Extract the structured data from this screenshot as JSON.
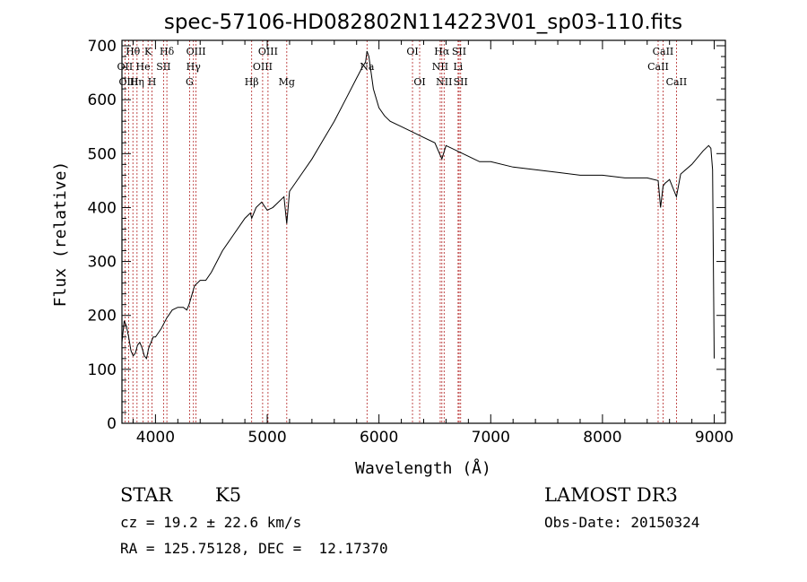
{
  "chart_data": {
    "type": "line",
    "title": "spec-57106-HD082802N114223V01_sp03-110.fits",
    "xlabel": "Wavelength (Å)",
    "ylabel": "Flux (relative)",
    "xlim": [
      3700,
      9100
    ],
    "ylim": [
      0,
      710
    ],
    "xticks": [
      4000,
      5000,
      6000,
      7000,
      8000,
      9000
    ],
    "yticks": [
      0,
      100,
      200,
      300,
      400,
      500,
      600,
      700
    ],
    "series": [
      {
        "name": "Flux",
        "x": [
          3700,
          3720,
          3740,
          3760,
          3780,
          3800,
          3820,
          3840,
          3860,
          3880,
          3900,
          3920,
          3940,
          3960,
          3980,
          4000,
          4050,
          4100,
          4150,
          4200,
          4250,
          4280,
          4300,
          4350,
          4400,
          4450,
          4500,
          4600,
          4700,
          4800,
          4850,
          4861,
          4900,
          4950,
          5000,
          5050,
          5100,
          5150,
          5175,
          5200,
          5300,
          5400,
          5500,
          5600,
          5700,
          5800,
          5850,
          5880,
          5893,
          5910,
          5930,
          5950,
          6000,
          6050,
          6100,
          6200,
          6300,
          6400,
          6500,
          6563,
          6600,
          6700,
          6800,
          6900,
          7000,
          7200,
          7400,
          7600,
          7800,
          8000,
          8200,
          8400,
          8498,
          8520,
          8542,
          8560,
          8600,
          8662,
          8700,
          8800,
          8900,
          8950,
          8970,
          8985,
          9000
        ],
        "y": [
          150,
          190,
          180,
          160,
          135,
          125,
          130,
          145,
          150,
          140,
          125,
          120,
          140,
          150,
          160,
          160,
          175,
          195,
          210,
          215,
          215,
          210,
          220,
          255,
          265,
          265,
          280,
          320,
          350,
          380,
          390,
          380,
          400,
          410,
          395,
          400,
          410,
          420,
          370,
          430,
          460,
          490,
          525,
          560,
          600,
          640,
          660,
          670,
          690,
          680,
          650,
          620,
          585,
          570,
          560,
          550,
          540,
          530,
          520,
          490,
          515,
          505,
          495,
          485,
          485,
          475,
          470,
          465,
          460,
          460,
          455,
          455,
          450,
          400,
          440,
          445,
          452,
          420,
          462,
          480,
          505,
          515,
          510,
          470,
          120
        ]
      }
    ],
    "lines": [
      {
        "name": "Hθ",
        "x": 3798,
        "row": 0
      },
      {
        "name": "OII",
        "x": 3727,
        "row": 1
      },
      {
        "name": "OIII",
        "x": 3760,
        "row": 2
      },
      {
        "name": "Hη",
        "x": 3835,
        "row": 2
      },
      {
        "name": "He",
        "x": 3889,
        "row": 1
      },
      {
        "name": "K",
        "x": 3934,
        "row": 0
      },
      {
        "name": "H",
        "x": 3969,
        "row": 2
      },
      {
        "name": "SII",
        "x": 4072,
        "row": 1
      },
      {
        "name": "Hδ",
        "x": 4102,
        "row": 0
      },
      {
        "name": "OIII",
        "x": 4363,
        "row": 0
      },
      {
        "name": "Hγ",
        "x": 4340,
        "row": 1
      },
      {
        "name": "G",
        "x": 4305,
        "row": 2
      },
      {
        "name": "Hβ",
        "x": 4861,
        "row": 2
      },
      {
        "name": "OIII",
        "x": 5007,
        "row": 0
      },
      {
        "name": "OIII",
        "x": 4959,
        "row": 1
      },
      {
        "name": "Mg",
        "x": 5175,
        "row": 2
      },
      {
        "name": "Na",
        "x": 5893,
        "row": 1
      },
      {
        "name": "OI",
        "x": 6300,
        "row": 0
      },
      {
        "name": "OI",
        "x": 6364,
        "row": 2
      },
      {
        "name": "Hα",
        "x": 6563,
        "row": 0
      },
      {
        "name": "NII",
        "x": 6548,
        "row": 1
      },
      {
        "name": "NII",
        "x": 6583,
        "row": 2
      },
      {
        "name": "SII",
        "x": 6717,
        "row": 0
      },
      {
        "name": "Li",
        "x": 6708,
        "row": 1
      },
      {
        "name": "SII",
        "x": 6731,
        "row": 2
      },
      {
        "name": "CaII",
        "x": 8542,
        "row": 0
      },
      {
        "name": "CaII",
        "x": 8498,
        "row": 1
      },
      {
        "name": "CaII",
        "x": 8662,
        "row": 2
      }
    ]
  },
  "info": {
    "object_class": "STAR",
    "subclass": "K5",
    "survey": "LAMOST DR3",
    "cz": "cz = 19.2 ± 22.6 km/s",
    "obs_date": "Obs-Date: 20150324",
    "coords": "RA = 125.75128, DEC =  12.17370"
  },
  "colors": {
    "spectrum": "#000000",
    "line_marker": "#b22222",
    "axes": "#000000"
  }
}
